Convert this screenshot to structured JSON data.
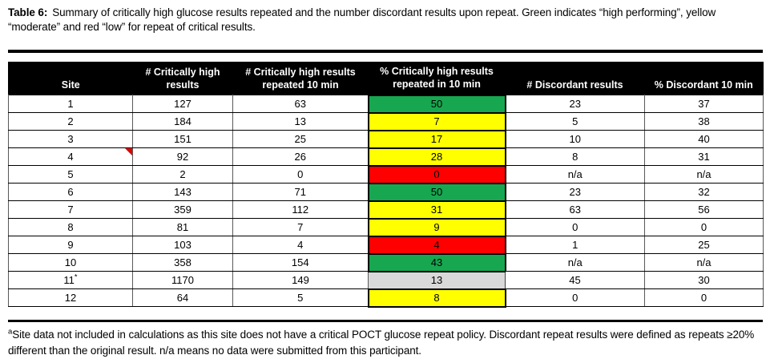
{
  "caption": {
    "label": "Table 6:",
    "text": "Summary of critically high glucose results repeated and the number discordant results upon repeat. Green indicates “high performing”, yellow “moderate” and red “low” for repeat of critical results."
  },
  "table": {
    "columns": [
      "Site",
      "# Critically high results",
      "# Critically high results repeated 10 min",
      "% Critically high results repeated in 10 min",
      "# Discordant results",
      "% Discordant 10 min"
    ],
    "rows": [
      {
        "site": "1",
        "critically_high": "127",
        "repeated_10min": "63",
        "pct_repeated_10min": "50",
        "performance_color": "green",
        "discordant": "23",
        "pct_discordant_10min": "37"
      },
      {
        "site": "2",
        "critically_high": "184",
        "repeated_10min": "13",
        "pct_repeated_10min": "7",
        "performance_color": "yellow",
        "discordant": "5",
        "pct_discordant_10min": "38"
      },
      {
        "site": "3",
        "critically_high": "151",
        "repeated_10min": "25",
        "pct_repeated_10min": "17",
        "performance_color": "yellow",
        "discordant": "10",
        "pct_discordant_10min": "40"
      },
      {
        "site": "4",
        "critically_high": "92",
        "repeated_10min": "26",
        "pct_repeated_10min": "28",
        "performance_color": "yellow",
        "discordant": "8",
        "pct_discordant_10min": "31",
        "comment_marker": true
      },
      {
        "site": "5",
        "critically_high": "2",
        "repeated_10min": "0",
        "pct_repeated_10min": "0",
        "performance_color": "red",
        "discordant": "n/a",
        "pct_discordant_10min": "n/a"
      },
      {
        "site": "6",
        "critically_high": "143",
        "repeated_10min": "71",
        "pct_repeated_10min": "50",
        "performance_color": "green",
        "discordant": "23",
        "pct_discordant_10min": "32"
      },
      {
        "site": "7",
        "critically_high": "359",
        "repeated_10min": "112",
        "pct_repeated_10min": "31",
        "performance_color": "yellow",
        "discordant": "63",
        "pct_discordant_10min": "56"
      },
      {
        "site": "8",
        "critically_high": "81",
        "repeated_10min": "7",
        "pct_repeated_10min": "9",
        "performance_color": "yellow",
        "discordant": "0",
        "pct_discordant_10min": "0"
      },
      {
        "site": "9",
        "critically_high": "103",
        "repeated_10min": "4",
        "pct_repeated_10min": "4",
        "performance_color": "red",
        "discordant": "1",
        "pct_discordant_10min": "25"
      },
      {
        "site": "10",
        "critically_high": "358",
        "repeated_10min": "154",
        "pct_repeated_10min": "43",
        "performance_color": "green",
        "discordant": "n/a",
        "pct_discordant_10min": "n/a"
      },
      {
        "site": "11",
        "site_superscript": "*",
        "critically_high": "1170",
        "repeated_10min": "149",
        "pct_repeated_10min": "13",
        "performance_color": "gray",
        "discordant": "45",
        "pct_discordant_10min": "30"
      },
      {
        "site": "12",
        "critically_high": "64",
        "repeated_10min": "5",
        "pct_repeated_10min": "8",
        "performance_color": "yellow",
        "discordant": "0",
        "pct_discordant_10min": "0"
      }
    ]
  },
  "colors": {
    "green": "#17a750",
    "yellow": "#ffff00",
    "red": "#fe0000",
    "gray": "#d9d9d9"
  },
  "footnote": {
    "marker": "a",
    "text": "Site data not included in calculations as this site does not have a critical POCT glucose repeat policy. Discordant repeat results were defined as repeats ≥20% different than the original result. n/a means no data were submitted from this participant."
  }
}
